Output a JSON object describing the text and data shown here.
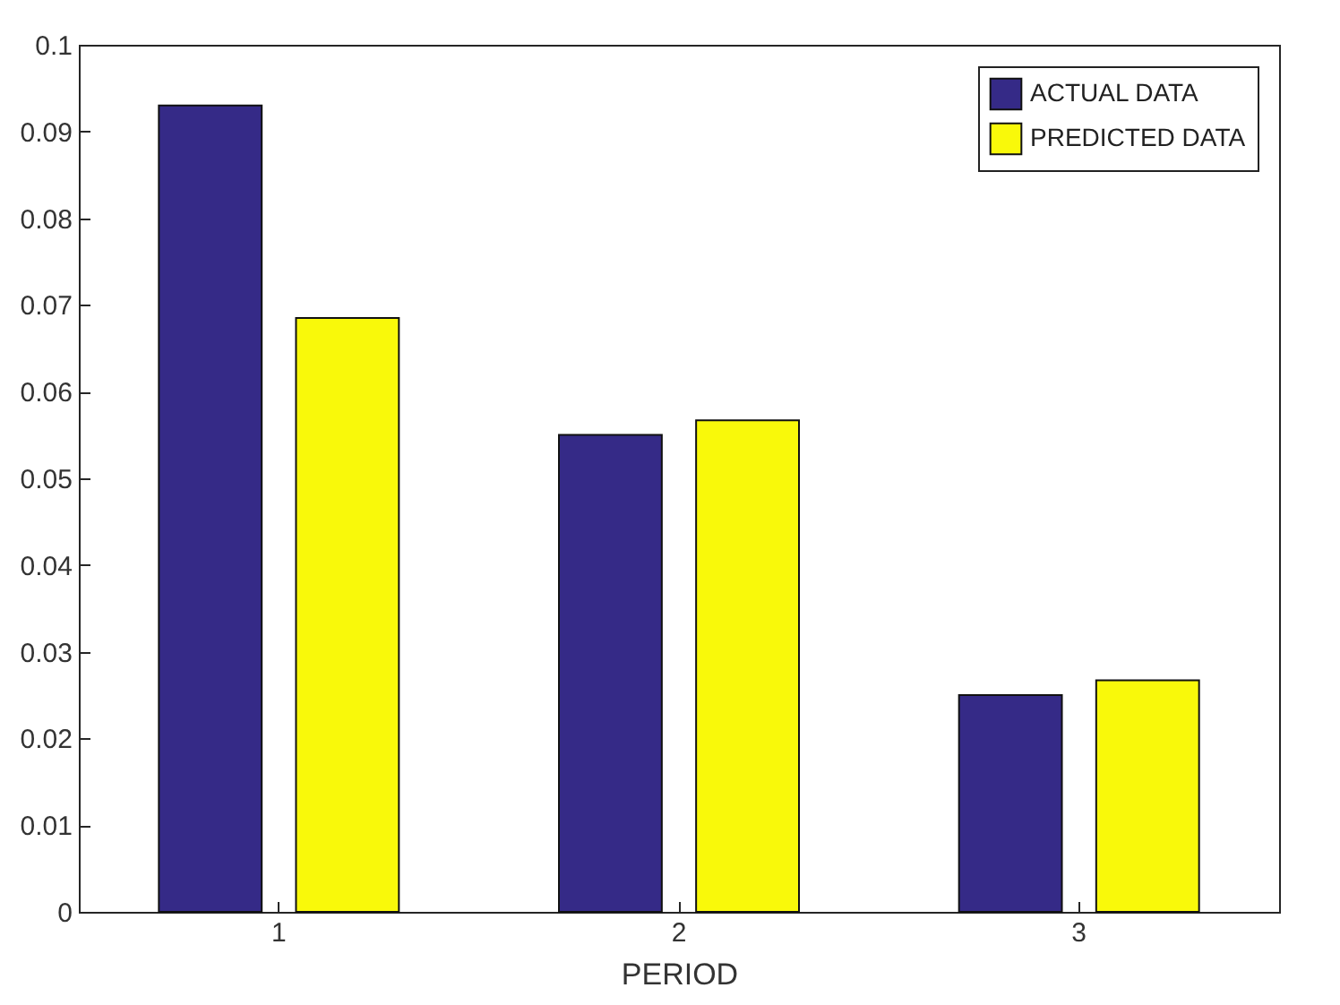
{
  "chart_data": {
    "type": "bar",
    "xlabel": "PERIOD",
    "categories": [
      "1",
      "2",
      "3"
    ],
    "series": [
      {
        "name": "ACTUAL DATA",
        "color": "#352a87",
        "values": [
          0.093,
          0.055,
          0.025
        ]
      },
      {
        "name": "PREDICTED DATA",
        "color": "#f9f90a",
        "values": [
          0.0685,
          0.0567,
          0.0267
        ]
      }
    ],
    "ylim": [
      0,
      0.1
    ],
    "yticks": [
      0,
      0.01,
      0.02,
      0.03,
      0.04,
      0.05,
      0.06,
      0.07,
      0.08,
      0.09,
      0.1
    ],
    "grid": false,
    "legend": "top right"
  }
}
